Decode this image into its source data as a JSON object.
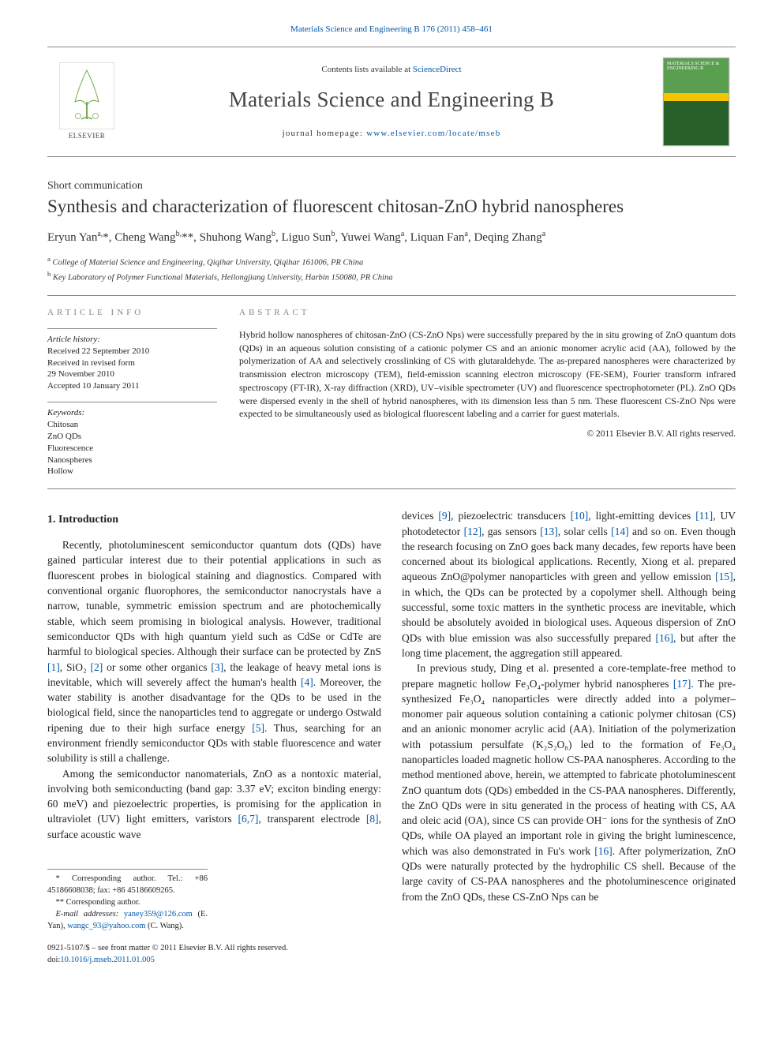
{
  "colors": {
    "link": "#0056a8",
    "text": "#222",
    "muted": "#888",
    "rule": "#888",
    "cover_top": "#5a9e4f",
    "cover_bottom": "#28602a",
    "cover_stripe": "#f3c400"
  },
  "top_citation": "Materials Science and Engineering B 176 (2011) 458–461",
  "masthead": {
    "contents_prefix": "Contents lists available at ",
    "contents_link": "ScienceDirect",
    "journal_title": "Materials Science and Engineering B",
    "homepage_prefix": "journal homepage: ",
    "homepage_link": "www.elsevier.com/locate/mseb",
    "publisher": "ELSEVIER",
    "cover_text": "MATERIALS SCIENCE & ENGINEERING B"
  },
  "article": {
    "type": "Short communication",
    "title": "Synthesis and characterization of fluorescent chitosan-ZnO hybrid nanospheres",
    "authors_html": "Eryun Yan<sup>a,</sup>*, Cheng Wang<sup>b,</sup>**, Shuhong Wang<sup>b</sup>, Liguo Sun<sup>b</sup>, Yuwei Wang<sup>a</sup>, Liquan Fan<sup>a</sup>, Deqing Zhang<sup>a</sup>",
    "affiliations": [
      "a College of Material Science and Engineering, Qiqihar University, Qiqihar 161006, PR China",
      "b Key Laboratory of Polymer Functional Materials, Heilongjiang University, Harbin 150080, PR China"
    ]
  },
  "info": {
    "heading": "ARTICLE INFO",
    "history_label": "Article history:",
    "history": [
      "Received 22 September 2010",
      "Received in revised form",
      "29 November 2010",
      "Accepted 10 January 2011"
    ],
    "keywords_label": "Keywords:",
    "keywords": [
      "Chitosan",
      "ZnO QDs",
      "Fluorescence",
      "Nanospheres",
      "Hollow"
    ]
  },
  "abstract": {
    "heading": "ABSTRACT",
    "text": "Hybrid hollow nanospheres of chitosan-ZnO (CS-ZnO Nps) were successfully prepared by the in situ growing of ZnO quantum dots (QDs) in an aqueous solution consisting of a cationic polymer CS and an anionic monomer acrylic acid (AA), followed by the polymerization of AA and selectively crosslinking of CS with glutaraldehyde. The as-prepared nanospheres were characterized by transmission electron microscopy (TEM), field-emission scanning electron microscopy (FE-SEM), Fourier transform infrared spectroscopy (FT-IR), X-ray diffraction (XRD), UV–visible spectrometer (UV) and fluorescence spectrophotometer (PL). ZnO QDs were dispersed evenly in the shell of hybrid nanospheres, with its dimension less than 5 nm. These fluorescent CS-ZnO Nps were expected to be simultaneously used as biological fluorescent labeling and a carrier for guest materials.",
    "copyright": "© 2011 Elsevier B.V. All rights reserved."
  },
  "body": {
    "section_1_heading": "1. Introduction",
    "p1": "Recently, photoluminescent semiconductor quantum dots (QDs) have gained particular interest due to their potential applications in such as fluorescent probes in biological staining and diagnostics. Compared with conventional organic fluorophores, the semiconductor nanocrystals have a narrow, tunable, symmetric emission spectrum and are photochemically stable, which seem promising in biological analysis. However, traditional semiconductor QDs with high quantum yield such as CdSe or CdTe are harmful to biological species. Although their surface can be protected by ZnS [1], SiO₂ [2] or some other organics [3], the leakage of heavy metal ions is inevitable, which will severely affect the human's health [4]. Moreover, the water stability is another disadvantage for the QDs to be used in the biological field, since the nanoparticles tend to aggregate or undergo Ostwald ripening due to their high surface energy [5]. Thus, searching for an environment friendly semiconductor QDs with stable fluorescence and water solubility is still a challenge.",
    "p2": "Among the semiconductor nanomaterials, ZnO as a nontoxic material, involving both semiconducting (band gap: 3.37 eV; exciton binding energy: 60 meV) and piezoelectric properties, is promising for the application in ultraviolet (UV) light emitters, varistors [6,7], transparent electrode [8], surface acoustic wave",
    "p3": "devices [9], piezoelectric transducers [10], light-emitting devices [11], UV photodetector [12], gas sensors [13], solar cells [14] and so on. Even though the research focusing on ZnO goes back many decades, few reports have been concerned about its biological applications. Recently, Xiong et al. prepared aqueous ZnO@polymer nanoparticles with green and yellow emission [15], in which, the QDs can be protected by a copolymer shell. Although being successful, some toxic matters in the synthetic process are inevitable, which should be absolutely avoided in biological uses. Aqueous dispersion of ZnO QDs with blue emission was also successfully prepared [16], but after the long time placement, the aggregation still appeared.",
    "p4": "In previous study, Ding et al. presented a core-template-free method to prepare magnetic hollow Fe₃O₄-polymer hybrid nanospheres [17]. The pre-synthesized Fe₃O₄ nanoparticles were directly added into a polymer–monomer pair aqueous solution containing a cationic polymer chitosan (CS) and an anionic monomer acrylic acid (AA). Initiation of the polymerization with potassium persulfate (K₂S₂O₈) led to the formation of Fe₃O₄ nanoparticles loaded magnetic hollow CS-PAA nanospheres. According to the method mentioned above, herein, we attempted to fabricate photoluminescent ZnO quantum dots (QDs) embedded in the CS-PAA nanospheres. Differently, the ZnO QDs were in situ generated in the process of heating with CS, AA and oleic acid (OA), since CS can provide OH⁻ ions for the synthesis of ZnO QDs, while OA played an important role in giving the bright luminescence, which was also demonstrated in Fu's work [16]. After polymerization, ZnO QDs were naturally protected by the hydrophilic CS shell. Because of the large cavity of CS-PAA nanospheres and the photoluminescence originated from the ZnO QDs, these CS-ZnO Nps can be",
    "refs": [
      "[1]",
      "[2]",
      "[3]",
      "[4]",
      "[5]",
      "[6,7]",
      "[8]",
      "[9]",
      "[10]",
      "[11]",
      "[12]",
      "[13]",
      "[14]",
      "[15]",
      "[16]",
      "[17]"
    ]
  },
  "footnotes": {
    "corr1": "* Corresponding author. Tel.: +86 45186608038; fax: +86 45186609265.",
    "corr2": "** Corresponding author.",
    "emails_label": "E-mail addresses: ",
    "email1": "yaney359@126.com",
    "email1_name": " (E. Yan), ",
    "email2": "wangc_93@yahoo.com",
    "email2_name": " (C. Wang)."
  },
  "footer": {
    "line1": "0921-5107/$ – see front matter © 2011 Elsevier B.V. All rights reserved.",
    "doi_label": "doi:",
    "doi": "10.1016/j.mseb.2011.01.005"
  }
}
